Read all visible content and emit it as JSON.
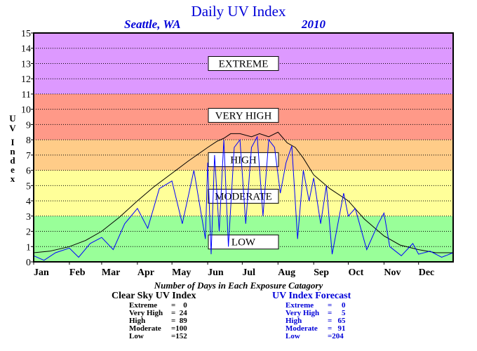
{
  "title": "Daily UV Index",
  "location": "Seattle, WA",
  "year": "2010",
  "axis": {
    "ylabel_letters": [
      "U",
      "V",
      "I",
      "n",
      "d",
      "e",
      "x"
    ],
    "yticks": [
      "0",
      "1",
      "2",
      "3",
      "4",
      "5",
      "6",
      "7",
      "8",
      "9",
      "10",
      "11",
      "12",
      "13",
      "14",
      "15"
    ],
    "months": [
      "Jan",
      "Feb",
      "Mar",
      "Apr",
      "May",
      "Jun",
      "Jul",
      "Aug",
      "Sep",
      "Oct",
      "Nov",
      "Dec"
    ]
  },
  "bands": [
    {
      "name": "LOW",
      "from": 0,
      "to": 3,
      "color": "#99ff99"
    },
    {
      "name": "MODERATE",
      "from": 3,
      "to": 6,
      "color": "#ffff99"
    },
    {
      "name": "HIGH",
      "from": 6,
      "to": 8,
      "color": "#ffcc88"
    },
    {
      "name": "VERY HIGH",
      "from": 8,
      "to": 11,
      "color": "#ff9988"
    },
    {
      "name": "EXTREME",
      "from": 11,
      "to": 15,
      "color": "#dd99ff"
    }
  ],
  "chart_data": {
    "type": "line",
    "title": "Daily UV Index",
    "xlabel": "",
    "ylabel": "UV Index",
    "ylim": [
      0,
      15
    ],
    "xlim": [
      1,
      365
    ],
    "grid": true,
    "series": [
      {
        "name": "Clear Sky UV Index",
        "color": "#000000",
        "x": [
          1,
          15,
          32,
          46,
          60,
          75,
          91,
          105,
          121,
          135,
          152,
          160,
          166,
          172,
          180,
          190,
          197,
          205,
          213,
          221,
          228,
          235,
          244,
          258,
          274,
          288,
          305,
          319,
          335,
          350,
          365
        ],
        "y": [
          0.6,
          0.7,
          1.0,
          1.4,
          2.0,
          2.9,
          4.0,
          4.9,
          5.8,
          6.6,
          7.5,
          7.9,
          8.1,
          8.4,
          8.4,
          8.2,
          8.4,
          8.2,
          8.5,
          7.8,
          7.5,
          6.8,
          5.7,
          4.8,
          4.0,
          2.8,
          1.7,
          1.1,
          0.8,
          0.6,
          0.6
        ]
      },
      {
        "name": "UV Index Forecast",
        "color": "#0000ff",
        "x": [
          1,
          10,
          20,
          32,
          40,
          50,
          60,
          70,
          80,
          91,
          100,
          110,
          121,
          130,
          140,
          150,
          152,
          155,
          158,
          162,
          166,
          170,
          175,
          180,
          185,
          190,
          195,
          200,
          205,
          210,
          215,
          220,
          225,
          230,
          235,
          240,
          244,
          250,
          255,
          260,
          270,
          274,
          280,
          290,
          300,
          305,
          310,
          320,
          330,
          335,
          345,
          355,
          365
        ],
        "y": [
          0.4,
          0.1,
          0.6,
          0.9,
          0.3,
          1.2,
          1.6,
          0.8,
          2.5,
          3.5,
          2.2,
          4.8,
          5.3,
          2.5,
          6.0,
          1.5,
          6.5,
          0.5,
          7.0,
          2.0,
          8.0,
          1.0,
          7.5,
          8.0,
          2.5,
          7.5,
          8.2,
          3.0,
          8.0,
          7.5,
          4.5,
          6.5,
          7.6,
          1.5,
          6.0,
          4.0,
          5.5,
          2.5,
          5.0,
          0.5,
          4.5,
          3.0,
          3.5,
          0.8,
          2.5,
          3.2,
          1.0,
          0.4,
          1.2,
          0.5,
          0.7,
          0.3,
          0.6
        ]
      }
    ]
  },
  "exposure_title": "Number of Days in Each Exposure Catagory",
  "clear_sky": {
    "title": "Clear Sky UV Index",
    "rows": [
      {
        "label": "Extreme",
        "value": "=    0"
      },
      {
        "label": "Very High",
        "value": "=  24"
      },
      {
        "label": "High",
        "value": "=  89"
      },
      {
        "label": "Moderate",
        "value": "=100"
      },
      {
        "label": "Low",
        "value": "=152"
      }
    ]
  },
  "forecast": {
    "title": "UV Index Forecast",
    "rows": [
      {
        "label": "Extreme",
        "value": "=     0"
      },
      {
        "label": "Very High",
        "value": "=     5"
      },
      {
        "label": "High",
        "value": "=   65"
      },
      {
        "label": "Moderate",
        "value": "=   91"
      },
      {
        "label": "Low",
        "value": "=204"
      }
    ]
  }
}
